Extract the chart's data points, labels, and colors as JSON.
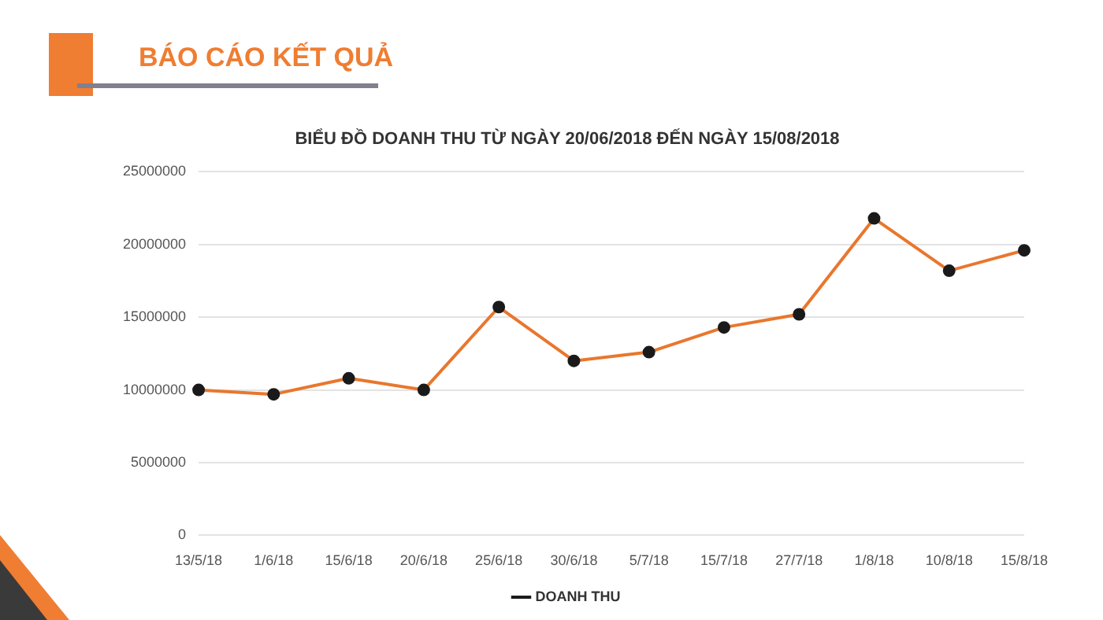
{
  "chart_data": {
    "type": "line",
    "title": "BIỂU ĐỒ DOANH THU TỪ NGÀY 20/06/2018 ĐẾN NGÀY 15/08/2018",
    "annotations": [
      "BÁO CÁO KẾT QUẢ"
    ],
    "categories": [
      "13/5/18",
      "1/6/18",
      "15/6/18",
      "20/6/18",
      "25/6/18",
      "30/6/18",
      "5/7/18",
      "15/7/18",
      "27/7/18",
      "1/8/18",
      "10/8/18",
      "15/8/18"
    ],
    "series": [
      {
        "name": "DOANH THU",
        "color": "#e8772e",
        "values": [
          10000000,
          9700000,
          10800000,
          10000000,
          15700000,
          12000000,
          12600000,
          14300000,
          15200000,
          21800000,
          18200000,
          19600000
        ]
      }
    ],
    "ylim": [
      0,
      25000000
    ],
    "yticks": [
      0,
      5000000,
      10000000,
      15000000,
      20000000,
      25000000
    ],
    "grid": "y",
    "legend": "bottom",
    "marker": "circle",
    "line_style": "solid"
  }
}
